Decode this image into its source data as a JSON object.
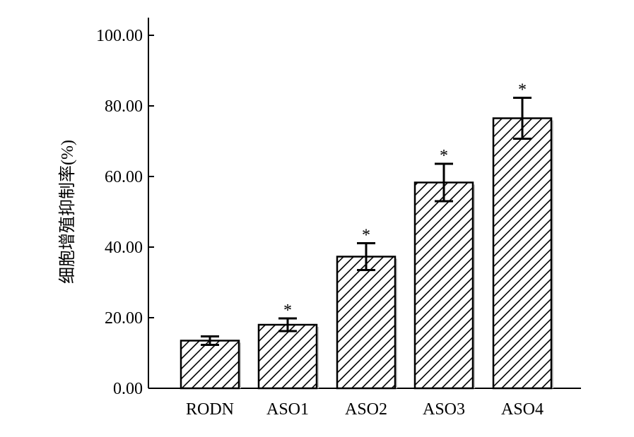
{
  "chart_data": {
    "type": "bar",
    "title": "",
    "xlabel": "",
    "ylabel": "细胞增殖抑制率(%)",
    "categories": [
      "RODN",
      "ASO1",
      "ASO2",
      "ASO3",
      "ASO4"
    ],
    "values": [
      13.5,
      18.0,
      37.3,
      58.3,
      76.5
    ],
    "error": [
      1.2,
      1.8,
      3.8,
      5.3,
      5.8
    ],
    "significance": [
      "",
      "*",
      "*",
      "*",
      "*"
    ],
    "ylim": [
      0,
      100
    ],
    "yticks": [
      "0.00",
      "20.00",
      "40.00",
      "60.00",
      "80.00",
      "100.00"
    ],
    "grid": false,
    "legend": "none",
    "bar_fill": "diagonal-hatch",
    "colors": {
      "bar_edge": "#000000",
      "hatch": "#000000",
      "bar_shadow": "#c8c8c8",
      "axis": "#000000"
    }
  }
}
